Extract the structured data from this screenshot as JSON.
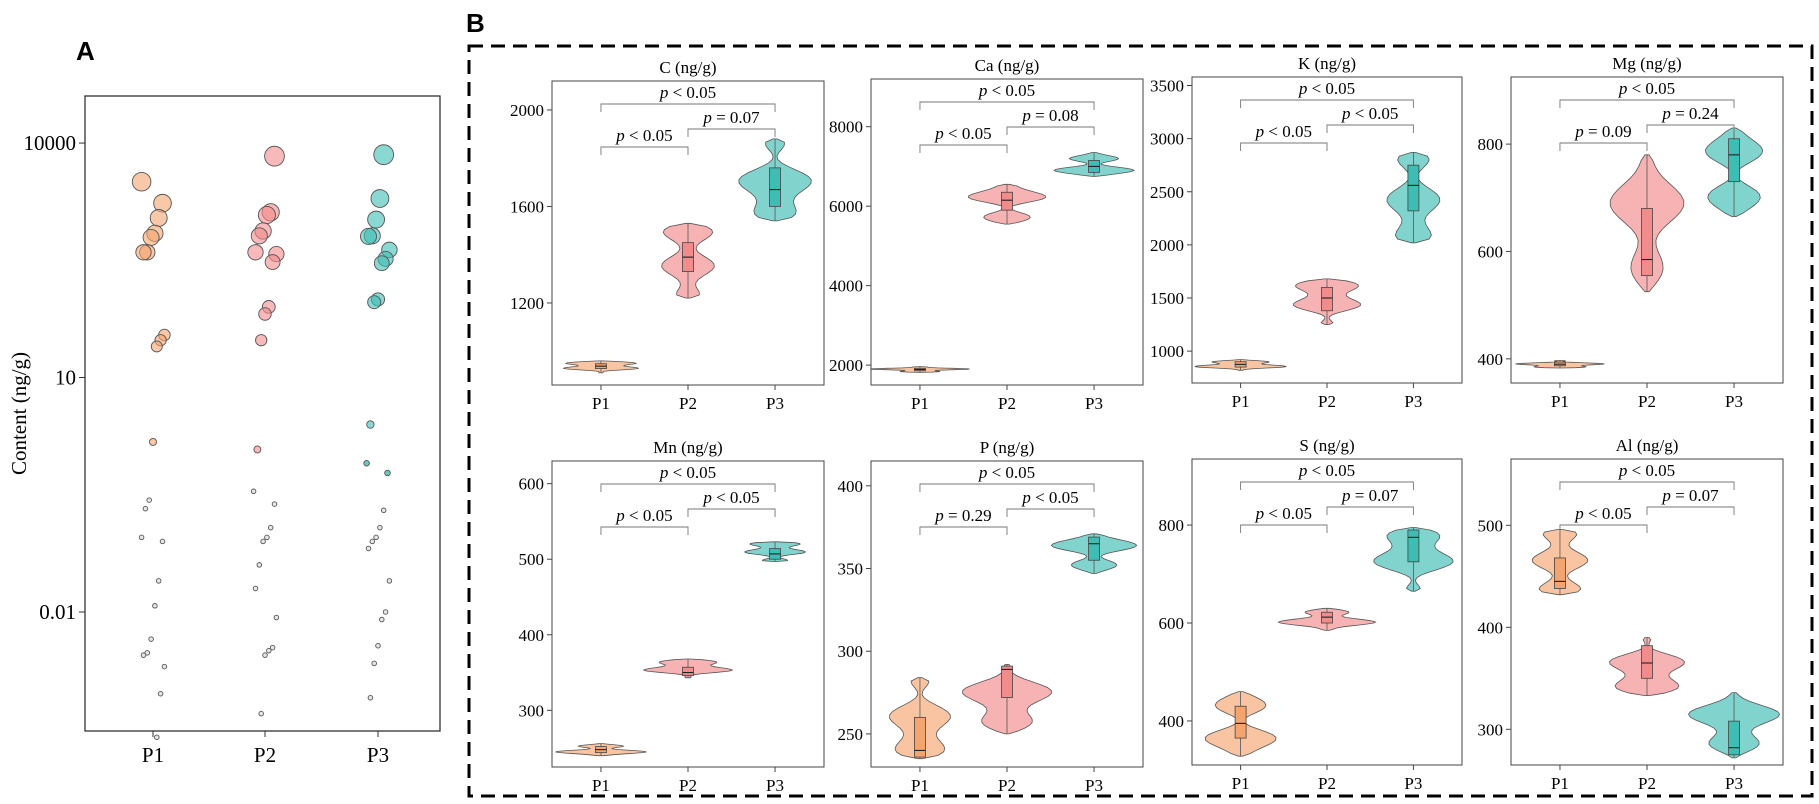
{
  "panel_a": {
    "label": "A"
  },
  "panel_b": {
    "label": "B"
  },
  "colors": {
    "P1": "#f4a46e",
    "P2": "#f28b8b",
    "P3": "#3dbdb3"
  },
  "chart_data": [
    {
      "type": "scatter",
      "panel": "A",
      "title": "",
      "xlabel": "",
      "ylabel": "Content (ng/g)",
      "yscale": "log",
      "ylim": [
        0.0003,
        40000
      ],
      "yticks": [
        {
          "v": 10000,
          "label": "10000"
        },
        {
          "v": 10,
          "label": "10"
        },
        {
          "v": 0.01,
          "label": "0.01"
        }
      ],
      "categories": [
        "P1",
        "P2",
        "P3"
      ],
      "note": "values per group estimated from the log axis",
      "series": [
        {
          "name": "P1",
          "values": [
            3200,
            1700,
            1100,
            700,
            620,
            400,
            400,
            35,
            30,
            25,
            1.5,
            0.27,
            0.21,
            0.09,
            0.08,
            0.025,
            0.012,
            0.0045,
            0.003,
            0.0028,
            0.002,
            0.0009,
            0.00025
          ]
        },
        {
          "name": "P2",
          "values": [
            6800,
            1300,
            1200,
            750,
            650,
            400,
            380,
            300,
            80,
            65,
            30,
            1.2,
            0.35,
            0.24,
            0.12,
            0.09,
            0.08,
            0.04,
            0.02,
            0.0085,
            0.0035,
            0.0032,
            0.0028,
            0.0005
          ]
        },
        {
          "name": "P3",
          "values": [
            7100,
            1950,
            1050,
            650,
            640,
            430,
            330,
            290,
            100,
            92,
            2.5,
            0.8,
            0.6,
            0.2,
            0.12,
            0.09,
            0.08,
            0.065,
            0.025,
            0.01,
            0.008,
            0.0037,
            0.0022,
            0.0008
          ]
        }
      ]
    },
    {
      "type": "violin",
      "panel": "B",
      "title": "C (ng/g)",
      "categories": [
        "P1",
        "P2",
        "P3"
      ],
      "ylim": [
        860,
        2120
      ],
      "yticks": [
        {
          "v": 1200,
          "label": "1200"
        },
        {
          "v": 1600,
          "label": "1600"
        },
        {
          "v": 2000,
          "label": "2000"
        }
      ],
      "series": [
        {
          "name": "P1",
          "min": 910,
          "q1": 928,
          "median": 938,
          "q3": 948,
          "max": 960
        },
        {
          "name": "P2",
          "min": 1220,
          "q1": 1330,
          "median": 1390,
          "q3": 1450,
          "max": 1530
        },
        {
          "name": "P3",
          "min": 1540,
          "q1": 1600,
          "median": 1670,
          "q3": 1760,
          "max": 1880
        }
      ],
      "comparisons": [
        {
          "pair": [
            "P1",
            "P2"
          ],
          "prefix": "p",
          "text": " < 0.05"
        },
        {
          "pair": [
            "P2",
            "P3"
          ],
          "prefix": "p",
          "text": " = 0.07"
        },
        {
          "pair": [
            "P1",
            "P3"
          ],
          "prefix": "p",
          "text": " < 0.05"
        }
      ]
    },
    {
      "type": "violin",
      "panel": "B",
      "title": "Ca (ng/g)",
      "categories": [
        "P1",
        "P2",
        "P3"
      ],
      "ylim": [
        1500,
        9200
      ],
      "yticks": [
        {
          "v": 2000,
          "label": "2000"
        },
        {
          "v": 4000,
          "label": "4000"
        },
        {
          "v": 6000,
          "label": "6000"
        },
        {
          "v": 8000,
          "label": "8000"
        }
      ],
      "series": [
        {
          "name": "P1",
          "min": 1820,
          "q1": 1860,
          "median": 1890,
          "q3": 1920,
          "max": 1960
        },
        {
          "name": "P2",
          "min": 5550,
          "q1": 5900,
          "median": 6150,
          "q3": 6350,
          "max": 6550
        },
        {
          "name": "P3",
          "min": 6750,
          "q1": 6850,
          "median": 7000,
          "q3": 7150,
          "max": 7350
        }
      ],
      "comparisons": [
        {
          "pair": [
            "P1",
            "P2"
          ],
          "prefix": "p",
          "text": " < 0.05"
        },
        {
          "pair": [
            "P2",
            "P3"
          ],
          "prefix": "p",
          "text": " = 0.08"
        },
        {
          "pair": [
            "P1",
            "P3"
          ],
          "prefix": "p",
          "text": " < 0.05"
        }
      ]
    },
    {
      "type": "violin",
      "panel": "B",
      "title": "K (ng/g)",
      "categories": [
        "P1",
        "P2",
        "P3"
      ],
      "ylim": [
        700,
        3580
      ],
      "yticks": [
        {
          "v": 1000,
          "label": "1000"
        },
        {
          "v": 1500,
          "label": "1500"
        },
        {
          "v": 2000,
          "label": "2000"
        },
        {
          "v": 2500,
          "label": "2500"
        },
        {
          "v": 3000,
          "label": "3000"
        },
        {
          "v": 3500,
          "label": "3500"
        }
      ],
      "series": [
        {
          "name": "P1",
          "min": 820,
          "q1": 850,
          "median": 875,
          "q3": 900,
          "max": 920
        },
        {
          "name": "P2",
          "min": 1250,
          "q1": 1380,
          "median": 1500,
          "q3": 1600,
          "max": 1680
        },
        {
          "name": "P3",
          "min": 2020,
          "q1": 2320,
          "median": 2560,
          "q3": 2750,
          "max": 2870
        }
      ],
      "comparisons": [
        {
          "pair": [
            "P1",
            "P2"
          ],
          "prefix": "p",
          "text": " < 0.05"
        },
        {
          "pair": [
            "P2",
            "P3"
          ],
          "prefix": "p",
          "text": " < 0.05"
        },
        {
          "pair": [
            "P1",
            "P3"
          ],
          "prefix": "p",
          "text": " < 0.05"
        }
      ]
    },
    {
      "type": "violin",
      "panel": "B",
      "title": "Mg (ng/g)",
      "categories": [
        "P1",
        "P2",
        "P3"
      ],
      "ylim": [
        355,
        925
      ],
      "yticks": [
        {
          "v": 400,
          "label": "400"
        },
        {
          "v": 600,
          "label": "600"
        },
        {
          "v": 800,
          "label": "800"
        }
      ],
      "series": [
        {
          "name": "P1",
          "min": 383,
          "q1": 387,
          "median": 390,
          "q3": 394,
          "max": 397
        },
        {
          "name": "P2",
          "min": 525,
          "q1": 555,
          "median": 585,
          "q3": 680,
          "max": 780
        },
        {
          "name": "P3",
          "min": 665,
          "q1": 730,
          "median": 780,
          "q3": 810,
          "max": 830
        }
      ],
      "comparisons": [
        {
          "pair": [
            "P1",
            "P2"
          ],
          "prefix": "p",
          "text": " = 0.09"
        },
        {
          "pair": [
            "P2",
            "P3"
          ],
          "prefix": "p",
          "text": " = 0.24"
        },
        {
          "pair": [
            "P1",
            "P3"
          ],
          "prefix": "p",
          "text": " < 0.05"
        }
      ]
    },
    {
      "type": "violin",
      "panel": "B",
      "title": "Mn (ng/g)",
      "categories": [
        "P1",
        "P2",
        "P3"
      ],
      "ylim": [
        225,
        630
      ],
      "yticks": [
        {
          "v": 300,
          "label": "300"
        },
        {
          "v": 400,
          "label": "400"
        },
        {
          "v": 500,
          "label": "500"
        },
        {
          "v": 600,
          "label": "600"
        }
      ],
      "series": [
        {
          "name": "P1",
          "min": 240,
          "q1": 244,
          "median": 248,
          "q3": 252,
          "max": 256
        },
        {
          "name": "P2",
          "min": 343,
          "q1": 346,
          "median": 350,
          "q3": 357,
          "max": 368
        },
        {
          "name": "P3",
          "min": 497,
          "q1": 500,
          "median": 507,
          "q3": 514,
          "max": 523
        }
      ],
      "comparisons": [
        {
          "pair": [
            "P1",
            "P2"
          ],
          "prefix": "p",
          "text": " < 0.05"
        },
        {
          "pair": [
            "P2",
            "P3"
          ],
          "prefix": "p",
          "text": " < 0.05"
        },
        {
          "pair": [
            "P1",
            "P3"
          ],
          "prefix": "p",
          "text": " < 0.05"
        }
      ]
    },
    {
      "type": "violin",
      "panel": "B",
      "title": "P (ng/g)",
      "categories": [
        "P1",
        "P2",
        "P3"
      ],
      "ylim": [
        230,
        415
      ],
      "yticks": [
        {
          "v": 250,
          "label": "250"
        },
        {
          "v": 300,
          "label": "300"
        },
        {
          "v": 350,
          "label": "350"
        },
        {
          "v": 400,
          "label": "400"
        }
      ],
      "series": [
        {
          "name": "P1",
          "min": 235,
          "q1": 236,
          "median": 240,
          "q3": 260,
          "max": 284
        },
        {
          "name": "P2",
          "min": 250,
          "q1": 272,
          "median": 289,
          "q3": 291,
          "max": 292
        },
        {
          "name": "P3",
          "min": 347,
          "q1": 355,
          "median": 365,
          "q3": 369,
          "max": 371
        }
      ],
      "comparisons": [
        {
          "pair": [
            "P1",
            "P2"
          ],
          "prefix": "p",
          "text": " = 0.29"
        },
        {
          "pair": [
            "P2",
            "P3"
          ],
          "prefix": "p",
          "text": " < 0.05"
        },
        {
          "pair": [
            "P1",
            "P3"
          ],
          "prefix": "p",
          "text": " < 0.05"
        }
      ]
    },
    {
      "type": "violin",
      "panel": "B",
      "title": "S (ng/g)",
      "categories": [
        "P1",
        "P2",
        "P3"
      ],
      "ylim": [
        310,
        935
      ],
      "yticks": [
        {
          "v": 400,
          "label": "400"
        },
        {
          "v": 600,
          "label": "600"
        },
        {
          "v": 800,
          "label": "800"
        }
      ],
      "series": [
        {
          "name": "P1",
          "min": 328,
          "q1": 365,
          "median": 395,
          "q3": 430,
          "max": 460
        },
        {
          "name": "P2",
          "min": 585,
          "q1": 600,
          "median": 612,
          "q3": 622,
          "max": 630
        },
        {
          "name": "P3",
          "min": 665,
          "q1": 725,
          "median": 775,
          "q3": 790,
          "max": 795
        }
      ],
      "comparisons": [
        {
          "pair": [
            "P1",
            "P2"
          ],
          "prefix": "p",
          "text": " < 0.05"
        },
        {
          "pair": [
            "P2",
            "P3"
          ],
          "prefix": "p",
          "text": " = 0.07"
        },
        {
          "pair": [
            "P1",
            "P3"
          ],
          "prefix": "p",
          "text": " < 0.05"
        }
      ]
    },
    {
      "type": "violin",
      "panel": "B",
      "title": "Al (ng/g)",
      "categories": [
        "P1",
        "P2",
        "P3"
      ],
      "ylim": [
        265,
        565
      ],
      "yticks": [
        {
          "v": 300,
          "label": "300"
        },
        {
          "v": 400,
          "label": "400"
        },
        {
          "v": 500,
          "label": "500"
        }
      ],
      "series": [
        {
          "name": "P1",
          "min": 432,
          "q1": 438,
          "median": 445,
          "q3": 468,
          "max": 496
        },
        {
          "name": "P2",
          "min": 333,
          "q1": 350,
          "median": 365,
          "q3": 382,
          "max": 390
        },
        {
          "name": "P3",
          "min": 272,
          "q1": 275,
          "median": 282,
          "q3": 308,
          "max": 336
        }
      ],
      "comparisons": [
        {
          "pair": [
            "P1",
            "P2"
          ],
          "prefix": "p",
          "text": " < 0.05"
        },
        {
          "pair": [
            "P2",
            "P3"
          ],
          "prefix": "p",
          "text": " = 0.07"
        },
        {
          "pair": [
            "P1",
            "P3"
          ],
          "prefix": "p",
          "text": " < 0.05"
        }
      ]
    }
  ]
}
